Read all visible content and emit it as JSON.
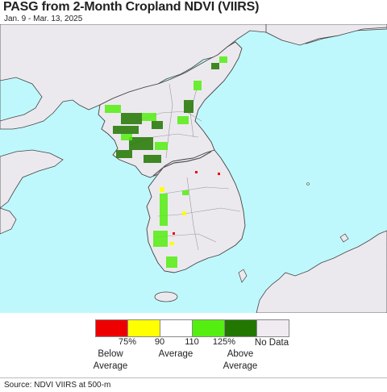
{
  "title": "PASG from 2-Month Cropland NDVI (VIIRS)",
  "date_range": "Jan. 9 - Mar. 13, 2025",
  "colors": {
    "ocean": "#bff8fc",
    "land": "#ece9ee",
    "border": "#888888",
    "coast": "#444444"
  },
  "legend": {
    "swatches": [
      {
        "label": "Below Average (<75%)",
        "color": "#ee0000"
      },
      {
        "label": "75-90%",
        "color": "#ffff00"
      },
      {
        "label": "90-110%",
        "color": "#ffffff"
      },
      {
        "label": "110-125%",
        "color": "#55ee11"
      },
      {
        "label": "Above Average (>125%)",
        "color": "#227700"
      },
      {
        "label": "No Data",
        "color": "#efebf0"
      }
    ],
    "ticks": [
      "75%",
      "90",
      "110",
      "125%"
    ],
    "categories": {
      "below": "Below\nAverage",
      "average": "Average",
      "above": "Above\nAverage",
      "nodata": "No Data"
    }
  },
  "source": "Source: NDVI VIIRS at 500-m"
}
